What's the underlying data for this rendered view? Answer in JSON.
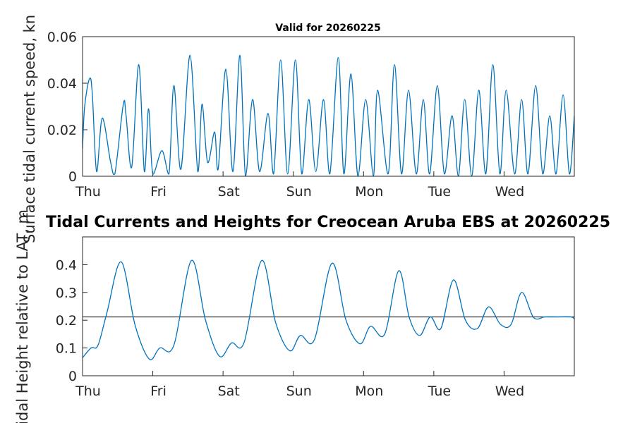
{
  "chart_data": [
    {
      "type": "line",
      "title": "Valid for 20260225",
      "ylabel": "Surface tidal current speed, kn",
      "ylim": [
        0,
        0.06
      ],
      "yticks": [
        "0",
        "0.02",
        "0.04",
        "0.06"
      ],
      "xlim": [
        0,
        7
      ],
      "xticks": [
        "Thu",
        "Fri",
        "Sat",
        "Sun",
        "Mon",
        "Tue",
        "Wed"
      ],
      "series": [
        {
          "color": "#0072bd",
          "x": [
            0.0,
            0.03,
            0.1,
            0.14,
            0.2,
            0.28,
            0.4,
            0.46,
            0.58,
            0.62,
            0.7,
            0.8,
            0.88,
            0.94,
            1.0,
            1.13,
            1.23,
            1.3,
            1.4,
            1.53,
            1.64,
            1.7,
            1.78,
            1.88,
            1.93,
            2.04,
            2.14,
            2.24,
            2.32,
            2.42,
            2.52,
            2.64,
            2.72,
            2.82,
            2.92,
            3.03,
            3.12,
            3.22,
            3.32,
            3.43,
            3.52,
            3.64,
            3.72,
            3.82,
            3.92,
            4.03,
            4.14,
            4.2,
            4.35,
            4.44,
            4.54,
            4.64,
            4.75,
            4.85,
            4.94,
            5.05,
            5.15,
            5.26,
            5.35,
            5.44,
            5.54,
            5.64,
            5.74,
            5.84,
            5.94,
            6.03,
            6.15,
            6.25,
            6.34,
            6.45,
            6.55,
            6.65,
            6.74,
            6.84,
            6.93,
            7.0
          ],
          "y": [
            0.012,
            0.03,
            0.042,
            0.035,
            0.002,
            0.025,
            0.006,
            0.001,
            0.031,
            0.026,
            0.004,
            0.048,
            0.002,
            0.029,
            0.001,
            0.011,
            0.001,
            0.039,
            0.003,
            0.052,
            0.002,
            0.031,
            0.006,
            0.019,
            0.003,
            0.046,
            0.002,
            0.052,
            0.0,
            0.033,
            0.002,
            0.027,
            0.001,
            0.05,
            0.001,
            0.05,
            0.001,
            0.033,
            0.002,
            0.033,
            0.001,
            0.051,
            0.001,
            0.044,
            0.0,
            0.033,
            0.0,
            0.037,
            0.001,
            0.048,
            0.001,
            0.037,
            0.001,
            0.033,
            0.001,
            0.039,
            0.001,
            0.026,
            0.0,
            0.033,
            0.0,
            0.037,
            0.001,
            0.048,
            0.001,
            0.037,
            0.001,
            0.033,
            0.001,
            0.039,
            0.001,
            0.026,
            0.001,
            0.035,
            0.001,
            0.026
          ]
        }
      ]
    },
    {
      "type": "line",
      "title": "Tidal Currents and Heights for Creocean Aruba EBS at 20260225",
      "ylabel": "Tidal Height relative to LAT, m",
      "ylim": [
        0,
        0.5
      ],
      "yticks": [
        "0",
        "0.1",
        "0.2",
        "0.3",
        "0.4"
      ],
      "xlim": [
        0,
        7
      ],
      "xticks": [
        "Thu",
        "Fri",
        "Sat",
        "Sun",
        "Mon",
        "Tue",
        "Wed"
      ],
      "reference_y": 0.212,
      "series": [
        {
          "color": "#0072bd",
          "x": [
            0.0,
            0.12,
            0.22,
            0.35,
            0.55,
            0.75,
            0.95,
            1.1,
            1.3,
            1.55,
            1.75,
            1.95,
            2.12,
            2.3,
            2.55,
            2.75,
            2.95,
            3.1,
            3.3,
            3.55,
            3.75,
            3.95,
            4.1,
            4.3,
            4.5,
            4.65,
            4.8,
            4.95,
            5.1,
            5.28,
            5.45,
            5.62,
            5.78,
            5.95,
            6.1,
            6.25,
            6.42,
            6.58,
            6.75,
            6.95,
            7.0
          ],
          "y": [
            0.065,
            0.1,
            0.11,
            0.23,
            0.41,
            0.18,
            0.06,
            0.1,
            0.11,
            0.415,
            0.2,
            0.07,
            0.118,
            0.12,
            0.415,
            0.19,
            0.09,
            0.145,
            0.13,
            0.405,
            0.2,
            0.115,
            0.178,
            0.15,
            0.378,
            0.21,
            0.145,
            0.212,
            0.17,
            0.345,
            0.2,
            0.17,
            0.248,
            0.185,
            0.185,
            0.3,
            0.21,
            0.212,
            0.212,
            0.212,
            0.205
          ]
        }
      ]
    }
  ]
}
